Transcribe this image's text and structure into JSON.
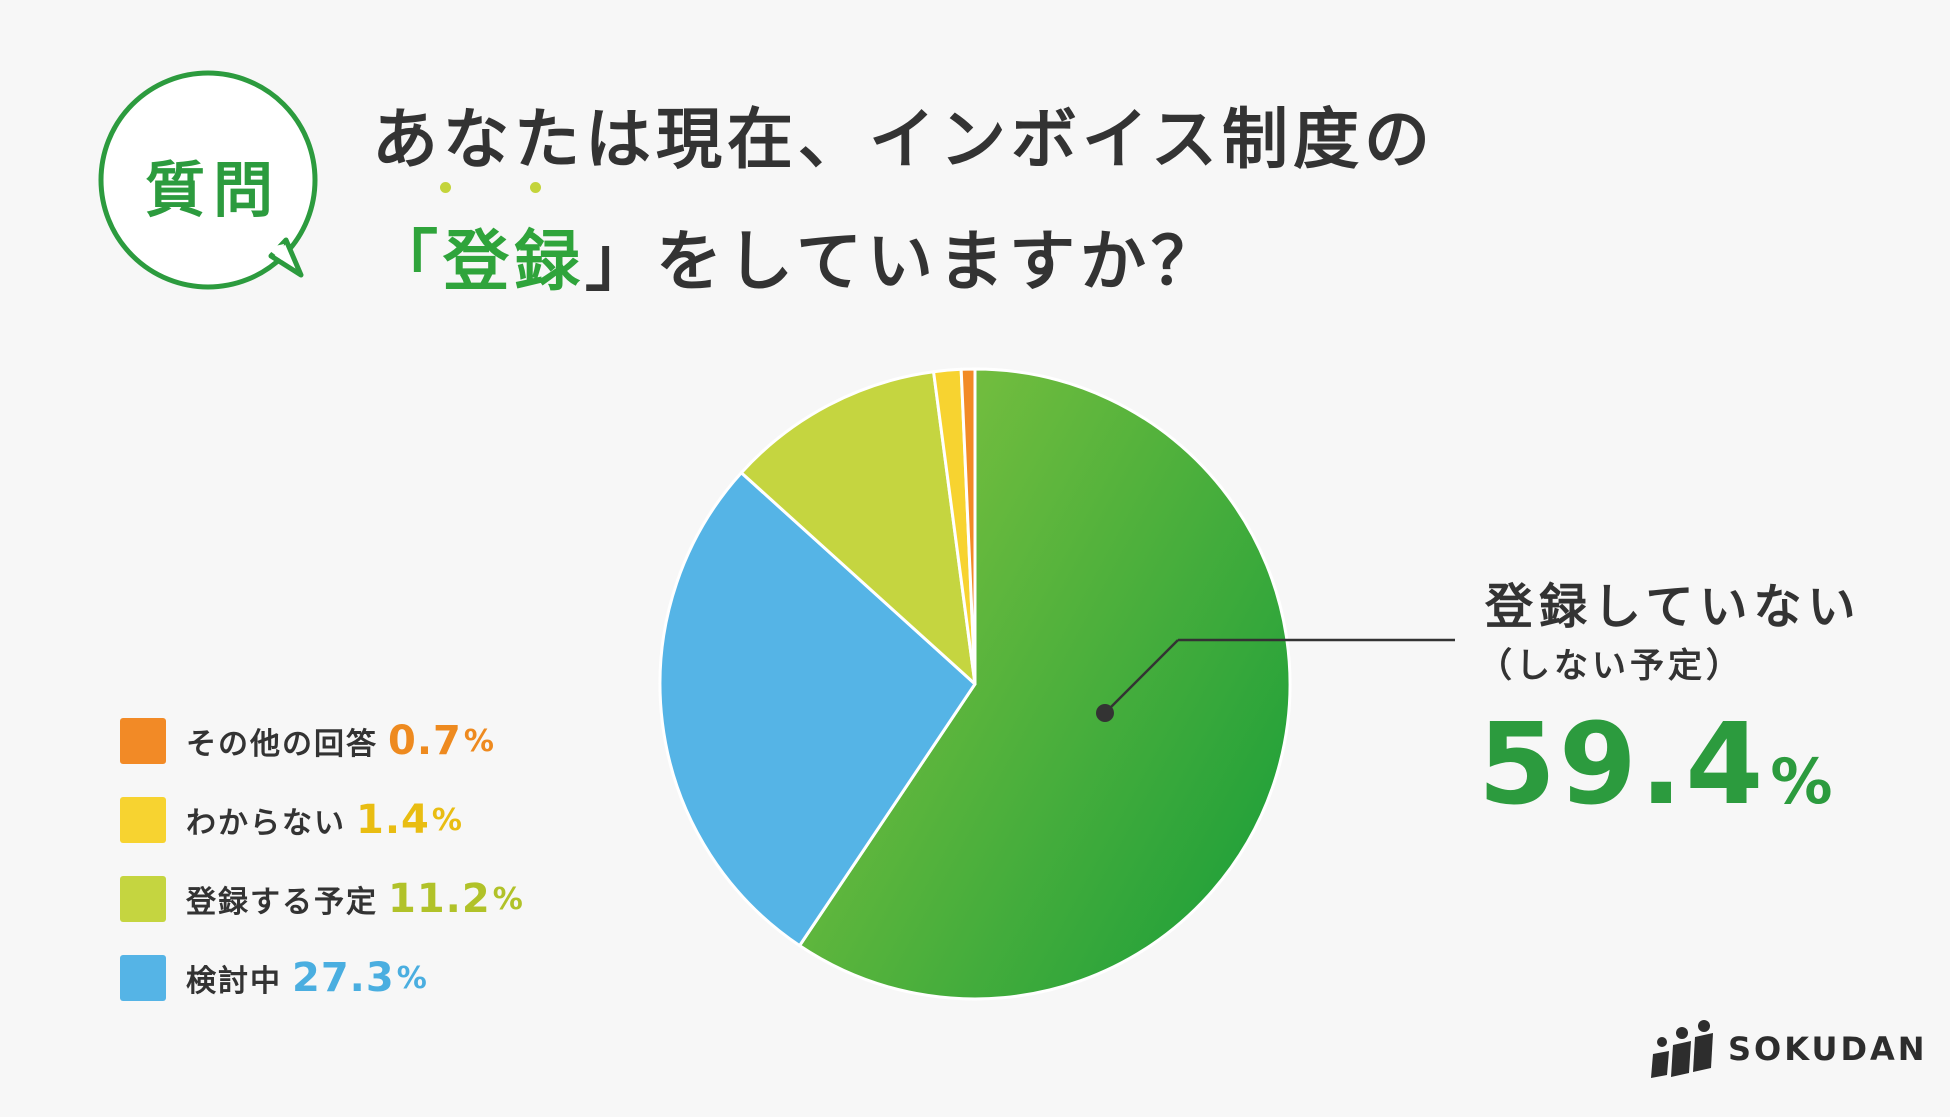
{
  "question_badge": "質問",
  "title": {
    "line1": "あなたは現在、インボイス制度の",
    "line2_prefix": "「",
    "line2_highlight": "登録",
    "line2_suffix": "」をしていますか？"
  },
  "callout": {
    "label_line1": "登録していない",
    "label_line2": "（しない予定）",
    "value": "59.4",
    "unit": "%"
  },
  "logo_text": "SOKUDAN",
  "colors": {
    "brand_green": "#2c9b3e",
    "not_registering": "#3aa63a",
    "other": "#f28a26",
    "unknown": "#f7d330",
    "planning": "#c5d540",
    "considering": "#55b4e6"
  },
  "legend": [
    {
      "label": "その他の回答",
      "value": "0.7",
      "unit": "%",
      "color": "#f28a26",
      "text_color": "#ee8a1f"
    },
    {
      "label": "わからない",
      "value": "1.4",
      "unit": "%",
      "color": "#f7d330",
      "text_color": "#e9bd12"
    },
    {
      "label": "登録する予定",
      "value": "11.2",
      "unit": "%",
      "color": "#c5d540",
      "text_color": "#b1c229"
    },
    {
      "label": "検討中",
      "value": "27.3",
      "unit": "%",
      "color": "#55b4e6",
      "text_color": "#4aaee0"
    }
  ],
  "chart_data": {
    "type": "pie",
    "title": "あなたは現在、インボイス制度の「登録」をしていますか？",
    "start": "12 o'clock",
    "direction": "clockwise",
    "slices": [
      {
        "label": "登録していない（しない予定）",
        "value": 59.4,
        "color": "#3aa63a"
      },
      {
        "label": "検討中",
        "value": 27.3,
        "color": "#55b4e6"
      },
      {
        "label": "登録する予定",
        "value": 11.2,
        "color": "#c5d540"
      },
      {
        "label": "わからない",
        "value": 1.4,
        "color": "#f7d330"
      },
      {
        "label": "その他の回答",
        "value": 0.7,
        "color": "#f28a26"
      }
    ]
  }
}
